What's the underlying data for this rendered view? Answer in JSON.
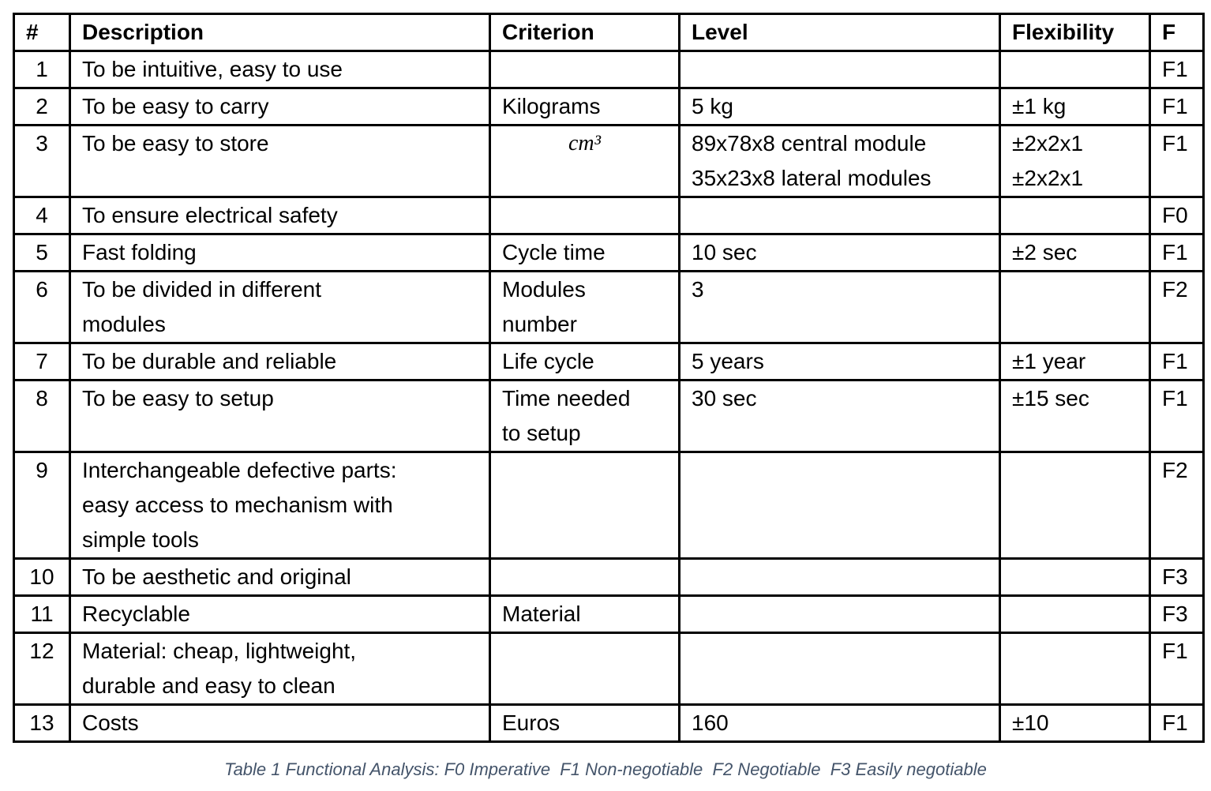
{
  "table": {
    "header": [
      "#",
      "Description",
      "Criterion",
      "Level",
      "Flexibility",
      "F"
    ],
    "rows": [
      [
        "1",
        "To be intuitive, easy to use",
        null,
        null,
        null,
        "F1"
      ],
      [
        "2",
        "To be easy to carry",
        "Kilograms",
        "5 kg",
        "±1 kg",
        "F1"
      ],
      [
        "3",
        "To be easy to store",
        "cm³",
        [
          "89x78x8 central module",
          "35x23x8 lateral modules"
        ],
        [
          "±2x2x1",
          "±2x2x1"
        ],
        "F1"
      ],
      [
        "4",
        "To ensure electrical safety",
        null,
        null,
        null,
        "F0"
      ],
      [
        "5",
        "Fast folding",
        "Cycle time",
        "10 sec",
        "±2 sec",
        "F1"
      ],
      [
        "6",
        [
          "To be divided in different",
          "modules"
        ],
        [
          "Modules",
          "number"
        ],
        "3",
        null,
        "F2"
      ],
      [
        "7",
        "To be durable and reliable",
        "Life cycle",
        "5 years",
        "±1 year",
        "F1"
      ],
      [
        "8",
        "To be easy to setup",
        [
          "Time needed",
          "to setup"
        ],
        "30 sec",
        "±15 sec",
        "F1"
      ],
      [
        "9",
        [
          "Interchangeable defective parts:",
          "easy access to mechanism with",
          "simple tools"
        ],
        null,
        null,
        null,
        "F2"
      ],
      [
        "10",
        "To be aesthetic and original",
        null,
        null,
        null,
        "F3"
      ],
      [
        "11",
        "Recyclable",
        "Material",
        null,
        null,
        "F3"
      ],
      [
        "12",
        [
          "Material: cheap, lightweight,",
          "durable and easy to clean"
        ],
        null,
        null,
        null,
        "F1"
      ],
      [
        "13",
        "Costs",
        "Euros",
        "160",
        "±10",
        "F1"
      ]
    ]
  },
  "caption": "Table 1 Functional Analysis: F0 Imperative  F1 Non-negotiable  F2 Negotiable  F3 Easily negotiable"
}
